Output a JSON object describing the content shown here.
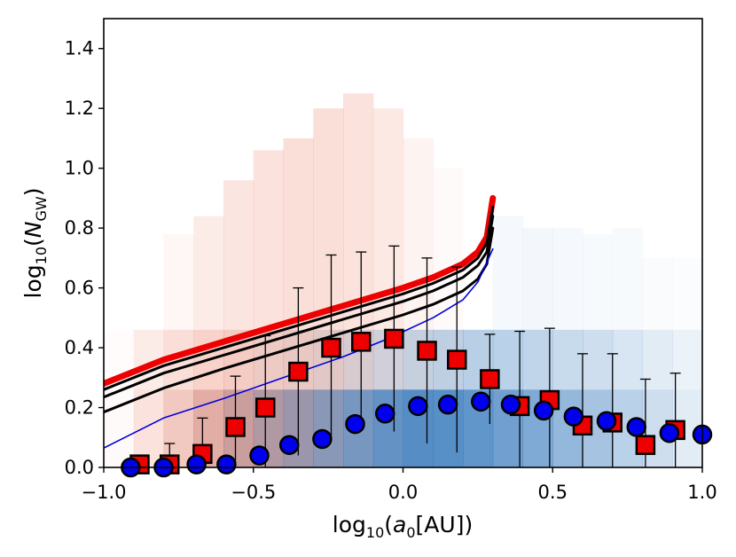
{
  "chart_data": {
    "type": "scatter",
    "title": "",
    "xlabel": "log10(a0[AU])",
    "ylabel": "log10(NGW)",
    "xlabel_parts": {
      "pre": "log",
      "sub": "10",
      "open": "(",
      "var": "a",
      "var_sub": "0",
      "rest": "[AU])"
    },
    "ylabel_parts": {
      "pre": "log",
      "sub": "10",
      "open": "(",
      "var": "N",
      "var_sub": "GW",
      "close": ")"
    },
    "xlim": [
      -1.0,
      1.0
    ],
    "ylim": [
      0.0,
      1.5
    ],
    "x_ticks": [
      -1.0,
      -0.5,
      0.0,
      0.5,
      1.0
    ],
    "x_tick_labels": [
      "−1.0",
      "−0.5",
      "0.0",
      "0.5",
      "1.0"
    ],
    "y_ticks": [
      0.0,
      0.2,
      0.4,
      0.6,
      0.8,
      1.0,
      1.2,
      1.4
    ],
    "y_tick_labels": [
      "0.0",
      "0.2",
      "0.4",
      "0.6",
      "0.8",
      "1.0",
      "1.2",
      "1.4"
    ],
    "colors": {
      "red_line": "#ee0000",
      "black_line": "#000000",
      "blue_line": "#0000dd",
      "square_fill": "#ee0000",
      "circle_fill": "#0000ee",
      "marker_edge": "#000000",
      "heat_red": "#e8603c",
      "heat_blue": "#3a7dbf"
    },
    "curves": [
      {
        "name": "red-thick",
        "color": "#ee0000",
        "width": 7,
        "points": [
          [
            -1.0,
            0.28
          ],
          [
            -0.8,
            0.36
          ],
          [
            -0.6,
            0.42
          ],
          [
            -0.4,
            0.48
          ],
          [
            -0.2,
            0.54
          ],
          [
            0.0,
            0.6
          ],
          [
            0.1,
            0.635
          ],
          [
            0.2,
            0.68
          ],
          [
            0.25,
            0.72
          ],
          [
            0.28,
            0.77
          ],
          [
            0.3,
            0.9
          ]
        ]
      },
      {
        "name": "black-1",
        "color": "#000000",
        "width": 3,
        "points": [
          [
            -1.0,
            0.26
          ],
          [
            -0.8,
            0.34
          ],
          [
            -0.6,
            0.4
          ],
          [
            -0.4,
            0.46
          ],
          [
            -0.2,
            0.52
          ],
          [
            0.0,
            0.58
          ],
          [
            0.1,
            0.615
          ],
          [
            0.2,
            0.66
          ],
          [
            0.25,
            0.7
          ],
          [
            0.28,
            0.75
          ],
          [
            0.3,
            0.87
          ]
        ]
      },
      {
        "name": "black-2",
        "color": "#000000",
        "width": 3,
        "points": [
          [
            -1.0,
            0.235
          ],
          [
            -0.8,
            0.315
          ],
          [
            -0.6,
            0.375
          ],
          [
            -0.4,
            0.435
          ],
          [
            -0.2,
            0.495
          ],
          [
            0.0,
            0.555
          ],
          [
            0.1,
            0.59
          ],
          [
            0.2,
            0.635
          ],
          [
            0.25,
            0.675
          ],
          [
            0.28,
            0.72
          ],
          [
            0.3,
            0.84
          ]
        ]
      },
      {
        "name": "black-3",
        "color": "#000000",
        "width": 3,
        "points": [
          [
            -1.0,
            0.185
          ],
          [
            -0.8,
            0.265
          ],
          [
            -0.6,
            0.33
          ],
          [
            -0.4,
            0.39
          ],
          [
            -0.2,
            0.45
          ],
          [
            0.0,
            0.51
          ],
          [
            0.1,
            0.545
          ],
          [
            0.2,
            0.59
          ],
          [
            0.25,
            0.63
          ],
          [
            0.28,
            0.68
          ],
          [
            0.3,
            0.8
          ]
        ]
      },
      {
        "name": "blue-thin",
        "color": "#0000dd",
        "width": 1.6,
        "points": [
          [
            -1.0,
            0.065
          ],
          [
            -0.8,
            0.165
          ],
          [
            -0.6,
            0.23
          ],
          [
            -0.4,
            0.3
          ],
          [
            -0.2,
            0.37
          ],
          [
            -0.05,
            0.43
          ],
          [
            0.1,
            0.5
          ],
          [
            0.2,
            0.56
          ],
          [
            0.25,
            0.62
          ],
          [
            0.3,
            0.73
          ]
        ]
      }
    ],
    "squares": [
      {
        "x": -0.88,
        "y": 0.01,
        "err": 0.02
      },
      {
        "x": -0.78,
        "y": 0.01,
        "err": 0.07
      },
      {
        "x": -0.67,
        "y": 0.045,
        "err": 0.12
      },
      {
        "x": -0.56,
        "y": 0.135,
        "err": 0.17
      },
      {
        "x": -0.46,
        "y": 0.2,
        "err": 0.24
      },
      {
        "x": -0.35,
        "y": 0.32,
        "err": 0.28
      },
      {
        "x": -0.24,
        "y": 0.4,
        "err": 0.31
      },
      {
        "x": -0.14,
        "y": 0.42,
        "err": 0.3
      },
      {
        "x": -0.03,
        "y": 0.43,
        "err": 0.31
      },
      {
        "x": 0.08,
        "y": 0.39,
        "err": 0.31
      },
      {
        "x": 0.18,
        "y": 0.36,
        "err": 0.31
      },
      {
        "x": 0.29,
        "y": 0.295,
        "err": 0.15
      },
      {
        "x": 0.39,
        "y": 0.205,
        "err": 0.25
      },
      {
        "x": 0.49,
        "y": 0.225,
        "err": 0.24
      },
      {
        "x": 0.6,
        "y": 0.14,
        "err": 0.24
      },
      {
        "x": 0.7,
        "y": 0.15,
        "err": 0.23
      },
      {
        "x": 0.81,
        "y": 0.075,
        "err": 0.22
      },
      {
        "x": 0.91,
        "y": 0.125,
        "err": 0.19
      }
    ],
    "circles": [
      {
        "x": -0.91,
        "y": 0.0
      },
      {
        "x": -0.8,
        "y": 0.0
      },
      {
        "x": -0.69,
        "y": 0.01
      },
      {
        "x": -0.59,
        "y": 0.01
      },
      {
        "x": -0.48,
        "y": 0.04
      },
      {
        "x": -0.38,
        "y": 0.075
      },
      {
        "x": -0.27,
        "y": 0.095
      },
      {
        "x": -0.16,
        "y": 0.145
      },
      {
        "x": -0.06,
        "y": 0.18
      },
      {
        "x": 0.05,
        "y": 0.205
      },
      {
        "x": 0.15,
        "y": 0.21
      },
      {
        "x": 0.26,
        "y": 0.22
      },
      {
        "x": 0.36,
        "y": 0.21
      },
      {
        "x": 0.47,
        "y": 0.19
      },
      {
        "x": 0.57,
        "y": 0.17
      },
      {
        "x": 0.68,
        "y": 0.155
      },
      {
        "x": 0.78,
        "y": 0.135
      },
      {
        "x": 0.89,
        "y": 0.115
      },
      {
        "x": 1.0,
        "y": 0.11
      }
    ],
    "heatmap": {
      "x_edges_start": -1.0,
      "x_bin_width": 0.1,
      "y_edges": [
        0.0,
        0.26,
        0.46
      ],
      "red_bottom": [
        0.03,
        0.18,
        0.32,
        0.48,
        0.55,
        0.55,
        0.52,
        0.42,
        0.32,
        0.22,
        0.15,
        0.08,
        0.04,
        0.02,
        0.0,
        0.0,
        0.0,
        0.0,
        0.0,
        0.0
      ],
      "blue_bottom": [
        0.0,
        0.0,
        0.03,
        0.1,
        0.22,
        0.35,
        0.48,
        0.58,
        0.68,
        0.78,
        0.85,
        0.85,
        0.8,
        0.72,
        0.65,
        0.55,
        0.45,
        0.35,
        0.25,
        0.15
      ],
      "red_mid": [
        0.02,
        0.12,
        0.2,
        0.28,
        0.3,
        0.3,
        0.3,
        0.28,
        0.22,
        0.15,
        0.1,
        0.06,
        0.03,
        0.0,
        0.0,
        0.0,
        0.0,
        0.0,
        0.0,
        0.0
      ],
      "blue_mid": [
        0.0,
        0.0,
        0.0,
        0.0,
        0.02,
        0.05,
        0.08,
        0.12,
        0.18,
        0.22,
        0.28,
        0.32,
        0.35,
        0.35,
        0.32,
        0.28,
        0.25,
        0.2,
        0.15,
        0.1
      ],
      "upper_red": [
        0.0,
        0.02,
        0.05,
        0.12,
        0.16,
        0.18,
        0.2,
        0.2,
        0.18,
        0.14,
        0.08,
        0.03,
        0.0,
        0.0,
        0.0,
        0.0,
        0.0,
        0.0,
        0.0,
        0.0
      ],
      "upper_blue": [
        0.0,
        0.0,
        0.0,
        0.0,
        0.0,
        0.0,
        0.0,
        0.0,
        0.0,
        0.0,
        0.0,
        0.0,
        0.0,
        0.05,
        0.06,
        0.05,
        0.04,
        0.04,
        0.03,
        0.02
      ],
      "upper_top": [
        0.0,
        0.0,
        0.78,
        0.84,
        0.96,
        1.06,
        1.1,
        1.2,
        1.25,
        1.2,
        1.1,
        1.0,
        0.0,
        0.84,
        0.8,
        0.8,
        0.78,
        0.8,
        0.7,
        0.7
      ]
    }
  }
}
